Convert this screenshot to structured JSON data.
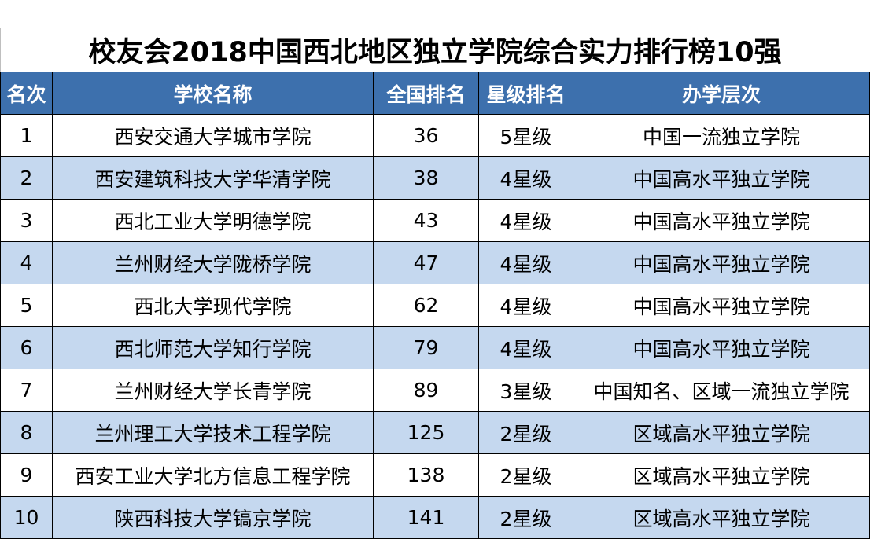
{
  "title": "校友会2018中国西北地区独立学院综合实力排行榜10强",
  "headers": [
    "名次",
    "学校名称",
    "全国排名",
    "星级排名",
    "办学层次"
  ],
  "rows": [
    [
      "1",
      "西安交通大学城市学院",
      "36",
      "5星级",
      "中国一流独立学院"
    ],
    [
      "2",
      "西安建筑科技大学华清学院",
      "38",
      "4星级",
      "中国高水平独立学院"
    ],
    [
      "3",
      "西北工业大学明德学院",
      "43",
      "4星级",
      "中国高水平独立学院"
    ],
    [
      "4",
      "兰州财经大学陇桥学院",
      "47",
      "4星级",
      "中国高水平独立学院"
    ],
    [
      "5",
      "西北大学现代学院",
      "62",
      "4星级",
      "中国高水平独立学院"
    ],
    [
      "6",
      "西北师范大学知行学院",
      "79",
      "4星级",
      "中国高水平独立学院"
    ],
    [
      "7",
      "兰州财经大学长青学院",
      "89",
      "3星级",
      "中国知名、区域一流独立学院"
    ],
    [
      "8",
      "兰州理工大学技术工程学院",
      "125",
      "2星级",
      "区域高水平独立学院"
    ],
    [
      "9",
      "西安工业大学北方信息工程学院",
      "138",
      "2星级",
      "区域高水平独立学院"
    ],
    [
      "10",
      "陕西科技大学镐京学院",
      "141",
      "2星级",
      "区域高水平独立学院"
    ]
  ],
  "colors": {
    "header_bg": "#3d70ad",
    "header_text": "#ffffff",
    "stripe_bg": "#c5d8ef",
    "row_bg": "#ffffff"
  }
}
